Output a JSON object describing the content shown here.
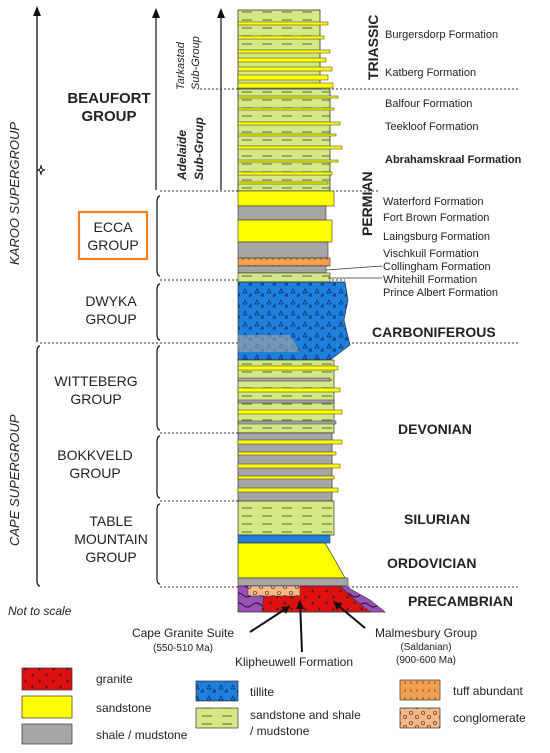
{
  "supergroups": {
    "karoo": "KAROO SUPERGROUP",
    "cape": "CAPE SUPERGROUP"
  },
  "subgroups": {
    "tarkastad": [
      "Tarkastad",
      "Sub-Group"
    ],
    "adelaide": [
      "Adelaide",
      "Sub-Group"
    ]
  },
  "groups": {
    "beaufort": [
      "BEAUFORT",
      "GROUP"
    ],
    "ecca": [
      "ECCA",
      "GROUP"
    ],
    "dwyka": [
      "DWYKA",
      "GROUP"
    ],
    "witteberg": [
      "WITTEBERG",
      "GROUP"
    ],
    "bokkveld": [
      "BOKKVELD",
      "GROUP"
    ],
    "table_mountain": [
      "TABLE",
      "MOUNTAIN",
      "GROUP"
    ]
  },
  "periods": {
    "triassic": "TRIASSIC",
    "permian": "PERMIAN",
    "carboniferous": "CARBONIFEROUS",
    "devonian": "DEVONIAN",
    "silurian": "SILURIAN",
    "ordovician": "ORDOVICIAN",
    "precambrian": "PRECAMBRIAN"
  },
  "formations": {
    "burgersdorp": "Burgersdorp Formation",
    "katberg": "Katberg Formation",
    "balfour": "Balfour Formation",
    "teekloof": "Teekloof Formation",
    "abrahamskraal": "Abrahamskraal Formation",
    "waterford": "Waterford Formation",
    "fort_brown": "Fort Brown Formation",
    "laingsburg": "Laingsburg Formation",
    "vischkuil": "Vischkuil Formation",
    "collingham": "Collingham Formation",
    "whitehill": "Whitehill Formation",
    "prince_albert": "Prince Albert Formation"
  },
  "basement": {
    "cape_granite": "Cape Granite Suite",
    "cape_granite_age": "(550-510 Ma)",
    "klipheuwell": "Klipheuwell Formation",
    "malmesbury": "Malmesbury Group",
    "malmesbury_sub": "(Saldanian)",
    "malmesbury_age": "(900-600 Ma)"
  },
  "not_to_scale": "Not to scale",
  "legend": {
    "granite": "granite",
    "sandstone": "sandstone",
    "shale": "shale / mudstone",
    "tillite": "tillite",
    "sandstone_shale_1": "sandstone and shale",
    "sandstone_shale_2": "/ mudstone",
    "tuff": "tuff abundant",
    "conglomerate": "conglomerate"
  },
  "colors": {
    "sandstone": "#ffff00",
    "sandstone_shale": "#d4e884",
    "shale": "#a6a6a6",
    "tillite": "#1f7fdc",
    "granite": "#e01010",
    "tuff": "#f0a050",
    "conglomerate": "#f5b88a",
    "malmesbury": "#9a50b4",
    "ecca_box": "#f08020"
  }
}
